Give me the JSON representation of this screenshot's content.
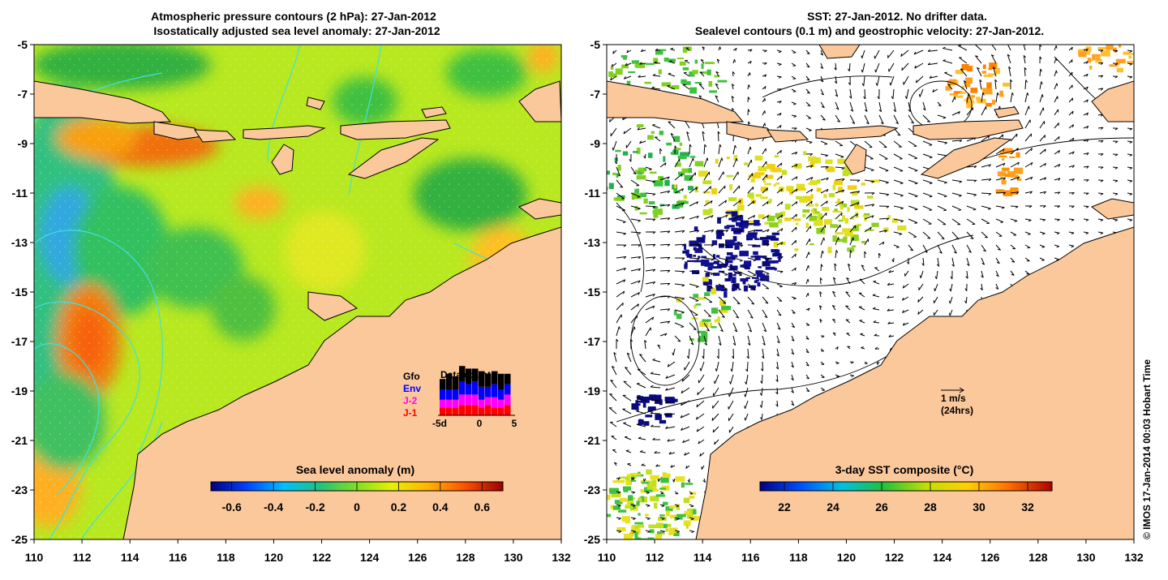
{
  "left_map": {
    "title_line1": "Atmospheric pressure contours (2 hPa): 27-Jan-2012",
    "title_line2": "Isostatically adjusted sea level anomaly: 27-Jan-2012",
    "lat_ticks": [
      "-5",
      "-7",
      "-9",
      "-11",
      "-13",
      "-15",
      "-17",
      "-19",
      "-21",
      "-23",
      "-25"
    ],
    "lon_ticks": [
      "110",
      "112",
      "114",
      "116",
      "118",
      "120",
      "122",
      "124",
      "126",
      "128",
      "130",
      "132"
    ],
    "colorbar": {
      "title": "Sea level anomaly (m)",
      "ticks": [
        "-0.6",
        "-0.4",
        "-0.2",
        "0",
        "0.2",
        "0.4",
        "0.6"
      ]
    },
    "data_count": {
      "title": "Data count",
      "sources": [
        {
          "label": "Gfo",
          "color": "#000000"
        },
        {
          "label": "Env",
          "color": "#0000ff"
        },
        {
          "label": "J-2",
          "color": "#ff00ff"
        },
        {
          "label": "J-1",
          "color": "#ff0000"
        }
      ],
      "axis_labels": [
        "-5d",
        "0",
        "5"
      ],
      "bars": [
        {
          "j1": 3,
          "j2": 3,
          "env": 4,
          "gfo": 4
        },
        {
          "j1": 3,
          "j2": 3,
          "env": 4,
          "gfo": 6
        },
        {
          "j1": 3,
          "j2": 3,
          "env": 4,
          "gfo": 5
        },
        {
          "j1": 4,
          "j2": 4,
          "env": 5,
          "gfo": 6
        },
        {
          "j1": 4,
          "j2": 4,
          "env": 4,
          "gfo": 6
        },
        {
          "j1": 4,
          "j2": 4,
          "env": 5,
          "gfo": 5
        },
        {
          "j1": 3,
          "j2": 3,
          "env": 5,
          "gfo": 6
        },
        {
          "j1": 4,
          "j2": 3,
          "env": 4,
          "gfo": 5
        },
        {
          "j1": 3,
          "j2": 4,
          "env": 5,
          "gfo": 5
        },
        {
          "j1": 3,
          "j2": 3,
          "env": 4,
          "gfo": 6
        },
        {
          "j1": 4,
          "j2": 4,
          "env": 4,
          "gfo": 4
        }
      ]
    }
  },
  "right_map": {
    "title_line1": "SST: 27-Jan-2012. No drifter data.",
    "title_line2": "Sealevel contours (0.1 m) and geostrophic velocity: 27-Jan-2012.",
    "lat_ticks": [
      "-5",
      "-7",
      "-9",
      "-11",
      "-13",
      "-15",
      "-17",
      "-19",
      "-21",
      "-23",
      "-25"
    ],
    "lon_ticks": [
      "110",
      "112",
      "114",
      "116",
      "118",
      "120",
      "122",
      "124",
      "126",
      "128",
      "130",
      "132"
    ],
    "colorbar": {
      "title": "3-day SST composite (°C)",
      "ticks": [
        "22",
        "24",
        "26",
        "28",
        "30",
        "32"
      ]
    },
    "scale_label": "1 m/s",
    "scale_sub": "(24hrs)"
  },
  "credit": "© IMOS 17-Jan-2014 00:03 Hobart Time",
  "colors": {
    "land": "#fbc89b",
    "contour_cyan": "#40e0e0",
    "ocean_base": "#b8e820"
  }
}
